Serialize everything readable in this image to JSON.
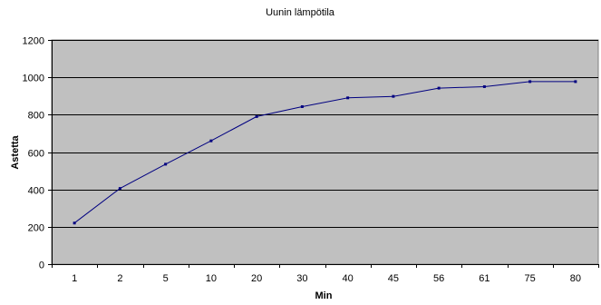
{
  "chart_data": {
    "type": "line",
    "title": "Uunin lämpötila",
    "xlabel": "Min",
    "ylabel": "Astetta",
    "categories": [
      "1",
      "2",
      "5",
      "10",
      "20",
      "30",
      "40",
      "45",
      "56",
      "61",
      "75",
      "80"
    ],
    "series": [
      {
        "values": [
          220,
          405,
          535,
          660,
          790,
          843,
          890,
          898,
          942,
          950,
          977,
          977
        ]
      }
    ],
    "ylim": [
      0,
      1200
    ],
    "yticks": [
      0,
      200,
      400,
      600,
      800,
      1000,
      1200
    ],
    "grid": true,
    "legend": "none",
    "colors": {
      "plot_background": "#c0c0c0",
      "gridline": "#000000",
      "series_line": "#000080",
      "marker": "#000080"
    }
  }
}
